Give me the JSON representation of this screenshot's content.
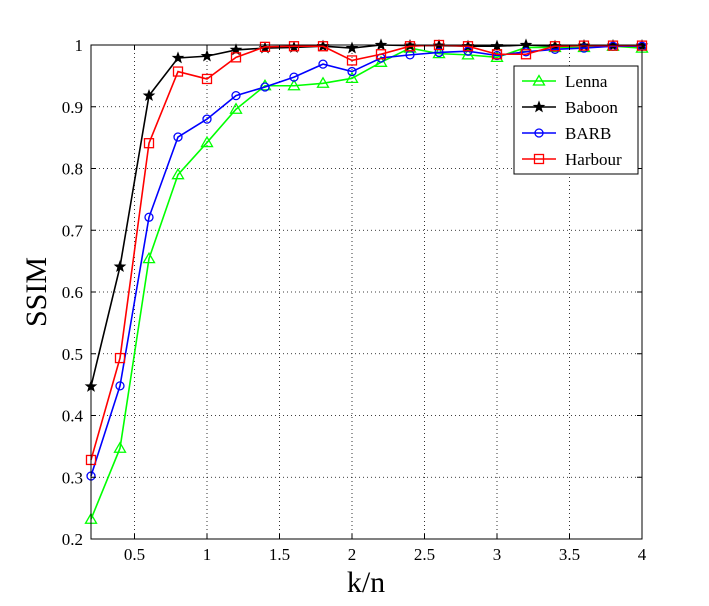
{
  "chart_data": {
    "type": "line",
    "title": "",
    "xlabel": "k/n",
    "ylabel": "SSIM",
    "xlim": [
      0.2,
      4
    ],
    "ylim": [
      0.2,
      1
    ],
    "grid": true,
    "legend_position": "top-right",
    "x_ticks": [
      0.5,
      1,
      1.5,
      2,
      2.5,
      3,
      3.5,
      4
    ],
    "x_tick_labels": [
      "0.5",
      "1",
      "1.5",
      "2",
      "2.5",
      "3",
      "3.5",
      "4"
    ],
    "y_ticks": [
      0.2,
      0.3,
      0.4,
      0.5,
      0.6,
      0.7,
      0.8,
      0.9,
      1
    ],
    "y_tick_labels": [
      "0.2",
      "0.3",
      "0.4",
      "0.5",
      "0.6",
      "0.7",
      "0.8",
      "0.9",
      "1"
    ],
    "x": [
      0.2,
      0.4,
      0.6,
      0.8,
      1.0,
      1.2,
      1.4,
      1.6,
      1.8,
      2.0,
      2.2,
      2.4,
      2.6,
      2.8,
      3.0,
      3.2,
      3.4,
      3.6,
      3.8,
      4.0
    ],
    "series": [
      {
        "name": "Lenna",
        "color": "#00ff00",
        "marker": "triangle",
        "values": [
          0.232,
          0.347,
          0.654,
          0.79,
          0.842,
          0.896,
          0.934,
          0.934,
          0.938,
          0.946,
          0.972,
          0.995,
          0.986,
          0.984,
          0.98,
          0.996,
          0.996,
          0.996,
          0.998,
          0.995
        ]
      },
      {
        "name": "Baboon",
        "color": "#000000",
        "marker": "star",
        "values": [
          0.447,
          0.641,
          0.918,
          0.979,
          0.982,
          0.992,
          0.995,
          0.996,
          0.998,
          0.995,
          1.0,
          0.999,
          0.999,
          0.998,
          0.998,
          1.0,
          0.998,
          0.999,
          0.999,
          0.999
        ]
      },
      {
        "name": "BARB",
        "color": "#0000ff",
        "marker": "circle",
        "values": [
          0.302,
          0.448,
          0.721,
          0.851,
          0.88,
          0.918,
          0.932,
          0.948,
          0.969,
          0.957,
          0.979,
          0.984,
          0.988,
          0.99,
          0.983,
          0.989,
          0.993,
          0.995,
          0.998,
          0.998
        ]
      },
      {
        "name": "Harbour",
        "color": "#ff0000",
        "marker": "square",
        "values": [
          0.328,
          0.493,
          0.841,
          0.957,
          0.945,
          0.98,
          0.997,
          0.998,
          0.998,
          0.975,
          0.985,
          0.998,
          1.0,
          0.998,
          0.985,
          0.985,
          0.998,
          0.999,
          0.999,
          0.999
        ]
      }
    ]
  }
}
